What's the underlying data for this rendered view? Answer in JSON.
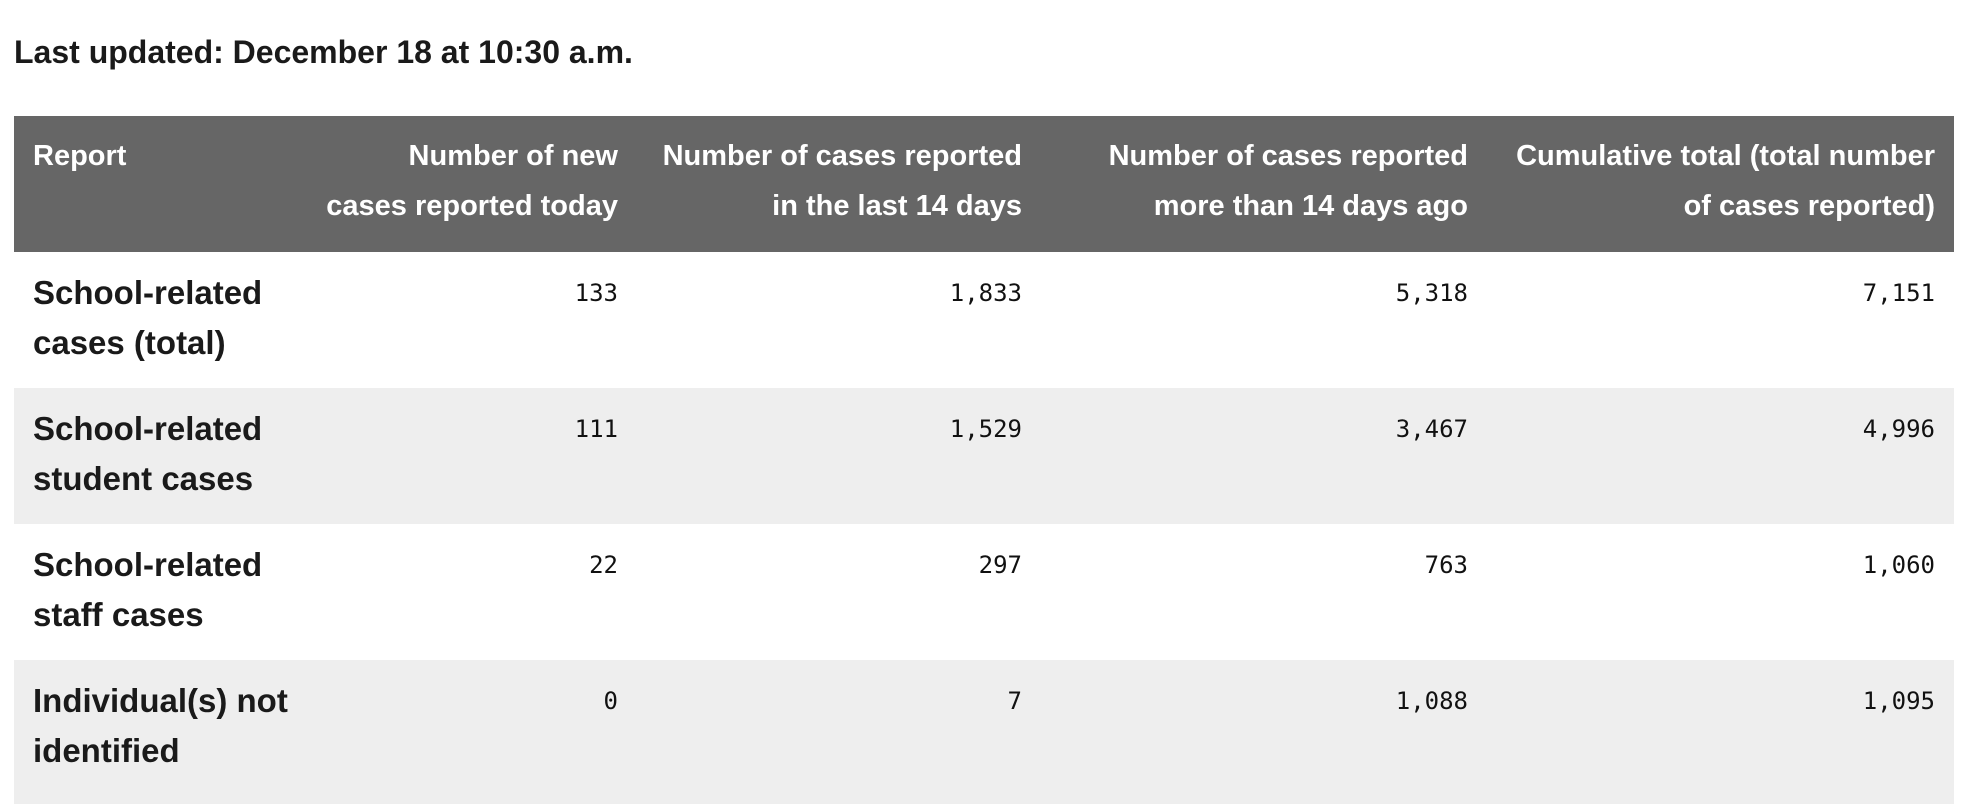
{
  "last_updated": "Last updated: December 18 at 10:30 a.m.",
  "table": {
    "headers": [
      "Report",
      "Number of new cases reported today",
      "Number of cases reported in the last 14 days",
      "Number of cases reported more than 14 days ago",
      "Cumulative total (total number of cases reported)"
    ],
    "rows": [
      {
        "report": "School-related cases (total)",
        "today": "133",
        "last14": "1,833",
        "more14": "5,318",
        "total": "7,151"
      },
      {
        "report": "School-related student cases",
        "today": "111",
        "last14": "1,529",
        "more14": "3,467",
        "total": "4,996"
      },
      {
        "report": "School-related staff cases",
        "today": "22",
        "last14": "297",
        "more14": "763",
        "total": "1,060"
      },
      {
        "report": "Individual(s) not identified",
        "today": "0",
        "last14": "7",
        "more14": "1,088",
        "total": "1,095"
      }
    ]
  },
  "colors": {
    "header_background": "#666666",
    "header_text": "#ffffff",
    "alternate_row": "#eeeeee"
  }
}
